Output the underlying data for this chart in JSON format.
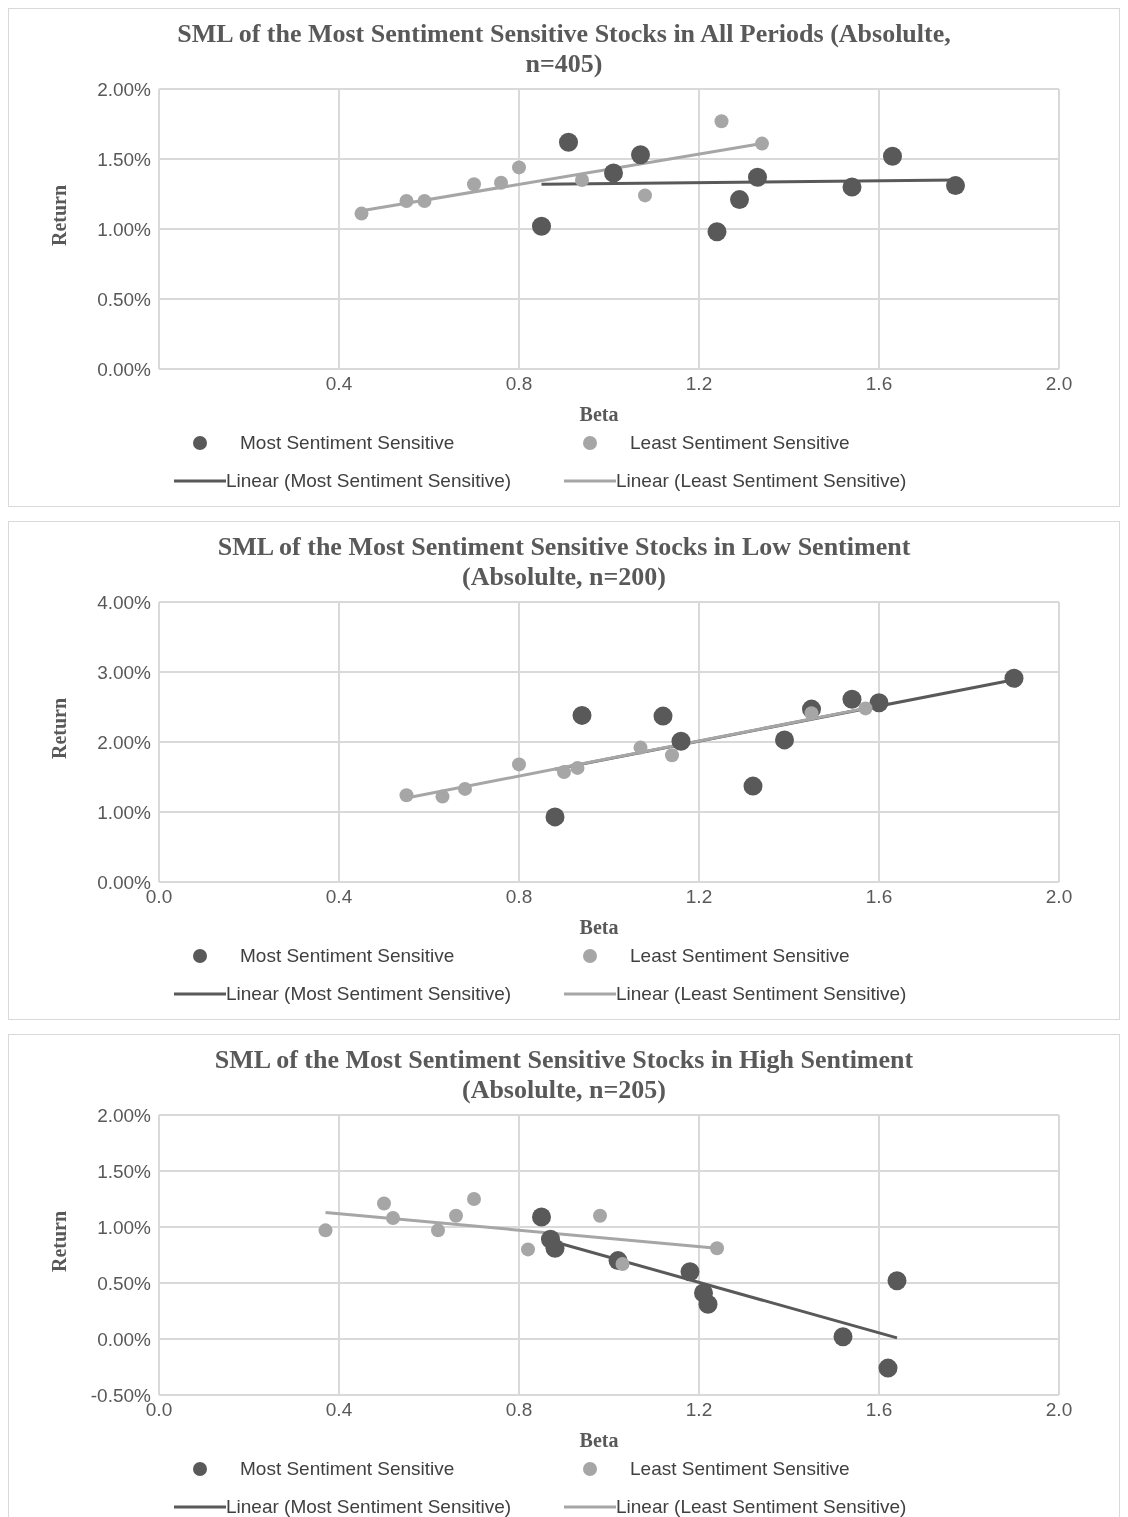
{
  "chart_data": [
    {
      "type": "scatter",
      "title": "SML of the Most Sentiment Sensitive Stocks in All Periods (Absolulte, n=405)",
      "xlabel": "Beta",
      "ylabel": "Return",
      "xlim": [
        0,
        2
      ],
      "xticks": [
        {
          "value": 0,
          "label": null
        },
        {
          "value": 0.4,
          "label": "0.4"
        },
        {
          "value": 0.8,
          "label": "0.8"
        },
        {
          "value": 1.2,
          "label": "1.2"
        },
        {
          "value": 1.6,
          "label": "1.6"
        },
        {
          "value": 2,
          "label": "2.0"
        }
      ],
      "ylim": [
        0,
        2
      ],
      "yticks": [
        {
          "value": 0,
          "label": "0.00%"
        },
        {
          "value": 0.5,
          "label": "0.50%"
        },
        {
          "value": 1,
          "label": "1.00%"
        },
        {
          "value": 1.5,
          "label": "1.50%"
        },
        {
          "value": 2,
          "label": "2.00%"
        }
      ],
      "grid": true,
      "legend": "bottom",
      "series": [
        {
          "name": "Most Sentiment Sensitive",
          "marker": "circle",
          "color": "#595959",
          "x": [
            0.91,
            0.85,
            1.01,
            1.07,
            1.24,
            1.29,
            1.33,
            1.54,
            1.63,
            1.77
          ],
          "values": [
            1.62,
            1.02,
            1.4,
            1.53,
            0.98,
            1.21,
            1.37,
            1.3,
            1.52,
            1.31
          ]
        },
        {
          "name": "Least Sentiment Sensitive",
          "marker": "circle",
          "color": "#a6a6a6",
          "x": [
            0.45,
            0.55,
            0.59,
            0.7,
            0.76,
            0.8,
            0.94,
            1.08,
            1.25,
            1.34
          ],
          "values": [
            1.11,
            1.2,
            1.2,
            1.32,
            1.33,
            1.44,
            1.35,
            1.24,
            1.77,
            1.61
          ]
        },
        {
          "name": "Linear (Most Sentiment Sensitive)",
          "type": "line",
          "color": "#595959",
          "x": [
            0.85,
            1.77
          ],
          "values": [
            1.32,
            1.35
          ]
        },
        {
          "name": "Linear (Least Sentiment Sensitive)",
          "type": "line",
          "color": "#a6a6a6",
          "x": [
            0.45,
            1.34
          ],
          "values": [
            1.13,
            1.61
          ]
        }
      ]
    },
    {
      "type": "scatter",
      "title": "SML of the Most Sentiment Sensitive Stocks in Low Sentiment (Absolulte, n=200)",
      "xlabel": "Beta",
      "ylabel": "Return",
      "xlim": [
        0,
        2
      ],
      "xticks": [
        {
          "value": 0,
          "label": "0.0"
        },
        {
          "value": 0.4,
          "label": "0.4"
        },
        {
          "value": 0.8,
          "label": "0.8"
        },
        {
          "value": 1.2,
          "label": "1.2"
        },
        {
          "value": 1.6,
          "label": "1.6"
        },
        {
          "value": 2,
          "label": "2.0"
        }
      ],
      "ylim": [
        0,
        4
      ],
      "yticks": [
        {
          "value": 0,
          "label": "0.00%"
        },
        {
          "value": 1,
          "label": "1.00%"
        },
        {
          "value": 2,
          "label": "2.00%"
        },
        {
          "value": 3,
          "label": "3.00%"
        },
        {
          "value": 4,
          "label": "4.00%"
        }
      ],
      "grid": true,
      "legend": "bottom",
      "series": [
        {
          "name": "Most Sentiment Sensitive",
          "marker": "circle",
          "color": "#595959",
          "x": [
            0.94,
            1.12,
            1.16,
            0.88,
            1.32,
            1.39,
            1.45,
            1.54,
            1.6,
            1.9
          ],
          "values": [
            2.38,
            2.37,
            2.01,
            0.93,
            1.37,
            2.03,
            2.47,
            2.61,
            2.56,
            2.91
          ]
        },
        {
          "name": "Least Sentiment Sensitive",
          "marker": "circle",
          "color": "#a6a6a6",
          "x": [
            0.55,
            0.63,
            0.68,
            0.8,
            0.9,
            0.93,
            1.07,
            1.14,
            1.45,
            1.57
          ],
          "values": [
            1.24,
            1.22,
            1.33,
            1.68,
            1.57,
            1.63,
            1.92,
            1.81,
            2.41,
            2.48
          ]
        },
        {
          "name": "Linear (Most Sentiment Sensitive)",
          "type": "line",
          "color": "#595959",
          "x": [
            0.88,
            1.9
          ],
          "values": [
            1.61,
            2.89
          ]
        },
        {
          "name": "Linear (Least Sentiment Sensitive)",
          "type": "line",
          "color": "#a6a6a6",
          "x": [
            0.55,
            1.57
          ],
          "values": [
            1.2,
            2.48
          ]
        }
      ]
    },
    {
      "type": "scatter",
      "title": "SML of the Most Sentiment Sensitive Stocks in High Sentiment (Absolulte, n=205)",
      "xlabel": "Beta",
      "ylabel": "Return",
      "xlim": [
        0,
        2
      ],
      "xticks": [
        {
          "value": 0,
          "label": "0.0"
        },
        {
          "value": 0.4,
          "label": "0.4"
        },
        {
          "value": 0.8,
          "label": "0.8"
        },
        {
          "value": 1.2,
          "label": "1.2"
        },
        {
          "value": 1.6,
          "label": "1.6"
        },
        {
          "value": 2,
          "label": "2.0"
        }
      ],
      "ylim": [
        -0.5,
        2
      ],
      "yticks": [
        {
          "value": -0.5,
          "label": "-0.50%"
        },
        {
          "value": 0,
          "label": "0.00%"
        },
        {
          "value": 0.5,
          "label": "0.50%"
        },
        {
          "value": 1,
          "label": "1.00%"
        },
        {
          "value": 1.5,
          "label": "1.50%"
        },
        {
          "value": 2,
          "label": "2.00%"
        }
      ],
      "grid": true,
      "legend": "bottom",
      "series": [
        {
          "name": "Most Sentiment Sensitive",
          "marker": "circle",
          "color": "#595959",
          "x": [
            0.85,
            0.87,
            0.88,
            1.02,
            1.18,
            1.21,
            1.22,
            1.52,
            1.62,
            1.64
          ],
          "values": [
            1.09,
            0.89,
            0.81,
            0.7,
            0.6,
            0.41,
            0.31,
            0.02,
            -0.26,
            0.52
          ]
        },
        {
          "name": "Least Sentiment Sensitive",
          "marker": "circle",
          "color": "#a6a6a6",
          "x": [
            0.37,
            0.5,
            0.52,
            0.62,
            0.66,
            0.7,
            0.82,
            0.98,
            1.03,
            1.24
          ],
          "values": [
            0.97,
            1.21,
            1.08,
            0.97,
            1.1,
            1.25,
            0.8,
            1.1,
            0.67,
            0.81
          ]
        },
        {
          "name": "Linear (Most Sentiment Sensitive)",
          "type": "line",
          "color": "#595959",
          "x": [
            0.85,
            1.64
          ],
          "values": [
            0.9,
            0.01
          ]
        },
        {
          "name": "Linear (Least Sentiment Sensitive)",
          "type": "line",
          "color": "#a6a6a6",
          "x": [
            0.37,
            1.24
          ],
          "values": [
            1.13,
            0.81
          ]
        }
      ]
    }
  ]
}
